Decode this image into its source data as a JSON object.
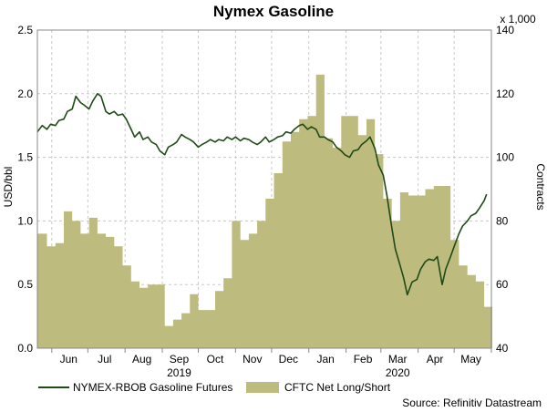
{
  "chart_data": {
    "type": "line+area",
    "title": "Nymex Gasoline",
    "y_left": {
      "label": "USD/bbl",
      "range": [
        0.0,
        2.5
      ],
      "ticks": [
        "0.0",
        "0.5",
        "1.0",
        "1.5",
        "2.0",
        "2.5"
      ]
    },
    "y_right": {
      "label": "Contracts",
      "unit_note": "x 1,000",
      "range": [
        40,
        140
      ],
      "ticks": [
        "40",
        "60",
        "80",
        "100",
        "120",
        "140"
      ]
    },
    "x_axis": {
      "range": [
        "2019-05-20",
        "2020-06-01"
      ],
      "months": [
        {
          "label": "Jun",
          "date": "2019-06-15"
        },
        {
          "label": "Jul",
          "date": "2019-07-15"
        },
        {
          "label": "Aug",
          "date": "2019-08-15"
        },
        {
          "label": "Sep",
          "date": "2019-09-15"
        },
        {
          "label": "Oct",
          "date": "2019-10-15"
        },
        {
          "label": "Nov",
          "date": "2019-11-15"
        },
        {
          "label": "Dec",
          "date": "2019-12-15"
        },
        {
          "label": "Jan",
          "date": "2020-01-15"
        },
        {
          "label": "Feb",
          "date": "2020-02-15"
        },
        {
          "label": "Mar",
          "date": "2020-03-15"
        },
        {
          "label": "Apr",
          "date": "2020-04-15"
        },
        {
          "label": "May",
          "date": "2020-05-15"
        }
      ],
      "years": [
        {
          "label": "2019",
          "date": "2019-09-15"
        },
        {
          "label": "2020",
          "date": "2020-03-15"
        }
      ]
    },
    "grid": true,
    "colors": {
      "line": "#1f4a16",
      "area": "#bdbb7e",
      "grid": "#c8c8c8"
    },
    "series": [
      {
        "name": "NYMEX-RBOB Gasoline Futures",
        "axis": "left",
        "style": "line",
        "points": [
          [
            "2019-05-20",
            1.7
          ],
          [
            "2019-05-24",
            1.75
          ],
          [
            "2019-05-28",
            1.72
          ],
          [
            "2019-05-31",
            1.76
          ],
          [
            "2019-06-04",
            1.75
          ],
          [
            "2019-06-07",
            1.79
          ],
          [
            "2019-06-11",
            1.8
          ],
          [
            "2019-06-14",
            1.86
          ],
          [
            "2019-06-18",
            1.88
          ],
          [
            "2019-06-21",
            1.98
          ],
          [
            "2019-06-25",
            1.93
          ],
          [
            "2019-06-28",
            1.91
          ],
          [
            "2019-07-02",
            1.88
          ],
          [
            "2019-07-05",
            1.94
          ],
          [
            "2019-07-09",
            2.0
          ],
          [
            "2019-07-12",
            1.98
          ],
          [
            "2019-07-16",
            1.86
          ],
          [
            "2019-07-19",
            1.84
          ],
          [
            "2019-07-23",
            1.86
          ],
          [
            "2019-07-26",
            1.83
          ],
          [
            "2019-07-30",
            1.84
          ],
          [
            "2019-08-02",
            1.8
          ],
          [
            "2019-08-06",
            1.72
          ],
          [
            "2019-08-09",
            1.66
          ],
          [
            "2019-08-13",
            1.7
          ],
          [
            "2019-08-16",
            1.64
          ],
          [
            "2019-08-20",
            1.66
          ],
          [
            "2019-08-23",
            1.62
          ],
          [
            "2019-08-27",
            1.6
          ],
          [
            "2019-08-30",
            1.55
          ],
          [
            "2019-09-03",
            1.52
          ],
          [
            "2019-09-06",
            1.58
          ],
          [
            "2019-09-10",
            1.6
          ],
          [
            "2019-09-13",
            1.62
          ],
          [
            "2019-09-17",
            1.68
          ],
          [
            "2019-09-20",
            1.66
          ],
          [
            "2019-09-24",
            1.64
          ],
          [
            "2019-09-27",
            1.62
          ],
          [
            "2019-10-01",
            1.58
          ],
          [
            "2019-10-04",
            1.6
          ],
          [
            "2019-10-08",
            1.62
          ],
          [
            "2019-10-11",
            1.64
          ],
          [
            "2019-10-15",
            1.62
          ],
          [
            "2019-10-18",
            1.64
          ],
          [
            "2019-10-22",
            1.63
          ],
          [
            "2019-10-25",
            1.66
          ],
          [
            "2019-10-29",
            1.64
          ],
          [
            "2019-11-01",
            1.66
          ],
          [
            "2019-11-05",
            1.63
          ],
          [
            "2019-11-08",
            1.65
          ],
          [
            "2019-11-12",
            1.64
          ],
          [
            "2019-11-15",
            1.62
          ],
          [
            "2019-11-19",
            1.6
          ],
          [
            "2019-11-22",
            1.62
          ],
          [
            "2019-11-26",
            1.66
          ],
          [
            "2019-11-29",
            1.62
          ],
          [
            "2019-12-03",
            1.64
          ],
          [
            "2019-12-06",
            1.66
          ],
          [
            "2019-12-10",
            1.67
          ],
          [
            "2019-12-13",
            1.7
          ],
          [
            "2019-12-17",
            1.69
          ],
          [
            "2019-12-20",
            1.72
          ],
          [
            "2019-12-24",
            1.75
          ],
          [
            "2019-12-27",
            1.76
          ],
          [
            "2019-12-31",
            1.72
          ],
          [
            "2020-01-03",
            1.74
          ],
          [
            "2020-01-07",
            1.72
          ],
          [
            "2020-01-10",
            1.66
          ],
          [
            "2020-01-14",
            1.66
          ],
          [
            "2020-01-17",
            1.64
          ],
          [
            "2020-01-21",
            1.62
          ],
          [
            "2020-01-24",
            1.58
          ],
          [
            "2020-01-28",
            1.55
          ],
          [
            "2020-01-31",
            1.52
          ],
          [
            "2020-02-04",
            1.5
          ],
          [
            "2020-02-07",
            1.55
          ],
          [
            "2020-02-11",
            1.56
          ],
          [
            "2020-02-14",
            1.6
          ],
          [
            "2020-02-18",
            1.63
          ],
          [
            "2020-02-21",
            1.66
          ],
          [
            "2020-02-25",
            1.57
          ],
          [
            "2020-02-28",
            1.44
          ],
          [
            "2020-03-03",
            1.36
          ],
          [
            "2020-03-06",
            1.2
          ],
          [
            "2020-03-10",
            0.95
          ],
          [
            "2020-03-13",
            0.78
          ],
          [
            "2020-03-17",
            0.65
          ],
          [
            "2020-03-20",
            0.55
          ],
          [
            "2020-03-23",
            0.42
          ],
          [
            "2020-03-27",
            0.52
          ],
          [
            "2020-03-31",
            0.54
          ],
          [
            "2020-04-03",
            0.62
          ],
          [
            "2020-04-07",
            0.68
          ],
          [
            "2020-04-10",
            0.7
          ],
          [
            "2020-04-14",
            0.69
          ],
          [
            "2020-04-17",
            0.72
          ],
          [
            "2020-04-21",
            0.5
          ],
          [
            "2020-04-24",
            0.62
          ],
          [
            "2020-04-28",
            0.72
          ],
          [
            "2020-05-01",
            0.8
          ],
          [
            "2020-05-05",
            0.9
          ],
          [
            "2020-05-08",
            0.96
          ],
          [
            "2020-05-12",
            1.0
          ],
          [
            "2020-05-15",
            1.04
          ],
          [
            "2020-05-19",
            1.06
          ],
          [
            "2020-05-22",
            1.1
          ],
          [
            "2020-05-26",
            1.16
          ],
          [
            "2020-05-28",
            1.21
          ]
        ]
      },
      {
        "name": "CFTC Net Long/Short",
        "axis": "right",
        "style": "area",
        "points": [
          [
            "2019-05-20",
            76.0
          ],
          [
            "2019-05-28",
            72.0
          ],
          [
            "2019-06-04",
            73.0
          ],
          [
            "2019-06-11",
            83.0
          ],
          [
            "2019-06-18",
            80.0
          ],
          [
            "2019-06-25",
            76.0
          ],
          [
            "2019-07-02",
            81.0
          ],
          [
            "2019-07-09",
            76.0
          ],
          [
            "2019-07-16",
            75.0
          ],
          [
            "2019-07-23",
            72.0
          ],
          [
            "2019-07-30",
            66.0
          ],
          [
            "2019-08-06",
            61.0
          ],
          [
            "2019-08-13",
            59.0
          ],
          [
            "2019-08-20",
            60.0
          ],
          [
            "2019-08-27",
            60.0
          ],
          [
            "2019-09-03",
            47.0
          ],
          [
            "2019-09-10",
            49.0
          ],
          [
            "2019-09-17",
            51.0
          ],
          [
            "2019-09-24",
            57.0
          ],
          [
            "2019-10-01",
            52.0
          ],
          [
            "2019-10-08",
            52.0
          ],
          [
            "2019-10-15",
            58.0
          ],
          [
            "2019-10-22",
            62.0
          ],
          [
            "2019-10-29",
            80.0
          ],
          [
            "2019-11-05",
            74.0
          ],
          [
            "2019-11-12",
            76.0
          ],
          [
            "2019-11-19",
            80.0
          ],
          [
            "2019-11-26",
            87.0
          ],
          [
            "2019-12-03",
            95.0
          ],
          [
            "2019-12-10",
            105.0
          ],
          [
            "2019-12-17",
            108.0
          ],
          [
            "2019-12-24",
            112.0
          ],
          [
            "2019-12-31",
            113.0
          ],
          [
            "2020-01-07",
            126.0
          ],
          [
            "2020-01-14",
            106.0
          ],
          [
            "2020-01-21",
            103.0
          ],
          [
            "2020-01-28",
            113.0
          ],
          [
            "2020-02-04",
            113.0
          ],
          [
            "2020-02-11",
            107.0
          ],
          [
            "2020-02-18",
            112.0
          ],
          [
            "2020-02-25",
            101.0
          ],
          [
            "2020-03-03",
            87.0
          ],
          [
            "2020-03-10",
            80.0
          ],
          [
            "2020-03-17",
            89.0
          ],
          [
            "2020-03-24",
            88.0
          ],
          [
            "2020-03-31",
            88.0
          ],
          [
            "2020-04-07",
            90.0
          ],
          [
            "2020-04-14",
            91.0
          ],
          [
            "2020-04-21",
            91.0
          ],
          [
            "2020-04-28",
            74.0
          ],
          [
            "2020-05-05",
            66.0
          ],
          [
            "2020-05-12",
            63.0
          ],
          [
            "2020-05-19",
            61.0
          ],
          [
            "2020-05-26",
            53.0
          ],
          [
            "2020-05-29",
            53.0
          ]
        ]
      }
    ],
    "legend": {
      "placement": "bottom"
    },
    "source": "Source: Refinitiv Datastream"
  }
}
